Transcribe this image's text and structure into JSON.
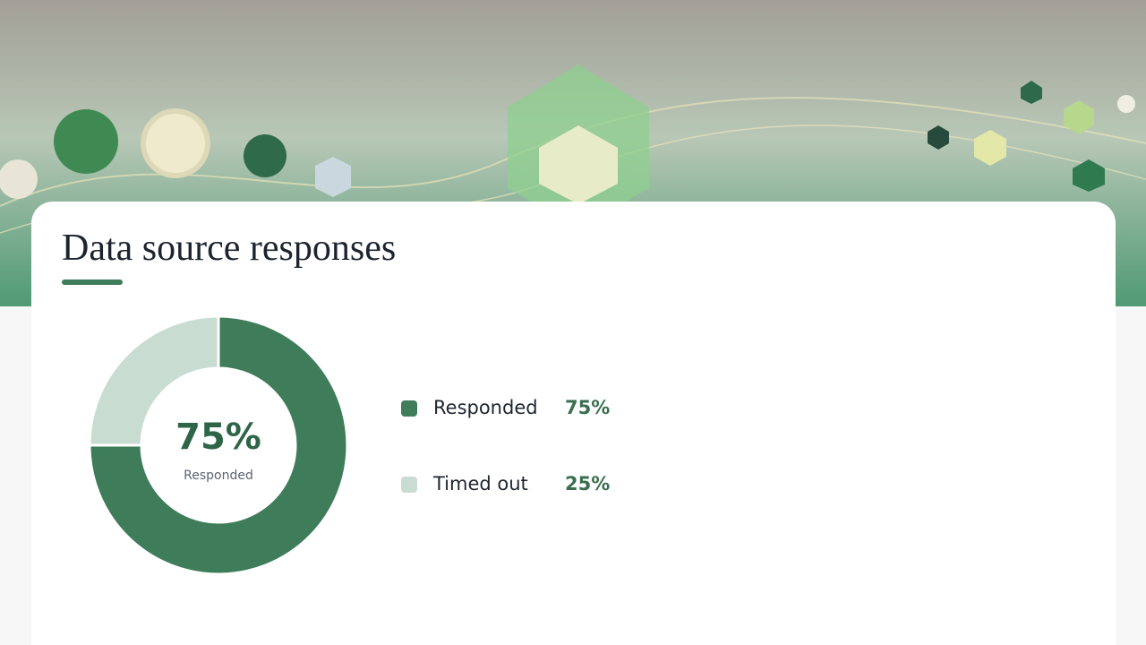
{
  "chart_data": {
    "type": "donut",
    "title": "Data source responses",
    "categories": [
      "Responded",
      "Timed out"
    ],
    "values": [
      75,
      25
    ],
    "value_labels": [
      "75%",
      "25%"
    ],
    "colors": [
      "#3f7d5a",
      "#c9dcd2"
    ]
  }
}
